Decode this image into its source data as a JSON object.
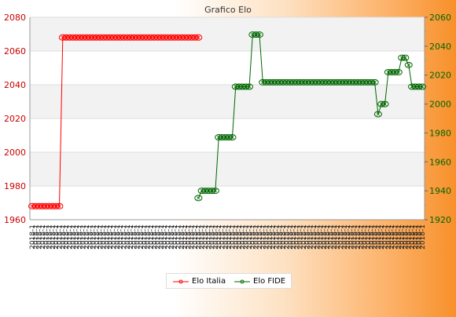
{
  "chart_data": {
    "type": "line",
    "title": "Grafico Elo",
    "x_tick_label": "2018-1",
    "point_count": 116,
    "left_axis": {
      "min": 1960,
      "max": 2080,
      "ticks": [
        1960,
        1980,
        2000,
        2020,
        2040,
        2060,
        2080
      ],
      "color": "#cc0000"
    },
    "right_axis": {
      "min": 1920,
      "max": 2060,
      "ticks": [
        1920,
        1940,
        1960,
        1980,
        2000,
        2020,
        2040,
        2060
      ],
      "color": "#006600"
    },
    "series": [
      {
        "name": "Elo Italia",
        "axis": "left",
        "color": "#ff0000",
        "runs": [
          {
            "from": 0,
            "to": 8,
            "value": 1968
          },
          {
            "from": 9,
            "to": 49,
            "value": 2068
          }
        ]
      },
      {
        "name": "Elo FIDE",
        "axis": "right",
        "color": "#006600",
        "runs": [
          {
            "from": 49,
            "to": 49,
            "value": 1935
          },
          {
            "from": 50,
            "to": 54,
            "value": 1940
          },
          {
            "from": 55,
            "to": 59,
            "value": 1977
          },
          {
            "from": 60,
            "to": 64,
            "value": 2012
          },
          {
            "from": 65,
            "to": 67,
            "value": 2048
          },
          {
            "from": 68,
            "to": 101,
            "value": 2015
          },
          {
            "from": 102,
            "to": 102,
            "value": 1993
          },
          {
            "from": 103,
            "to": 104,
            "value": 2000
          },
          {
            "from": 105,
            "to": 108,
            "value": 2022
          },
          {
            "from": 109,
            "to": 110,
            "value": 2032
          },
          {
            "from": 111,
            "to": 111,
            "value": 2027
          },
          {
            "from": 112,
            "to": 115,
            "value": 2012
          }
        ]
      }
    ],
    "legend": "bottom-center",
    "grid": true
  }
}
